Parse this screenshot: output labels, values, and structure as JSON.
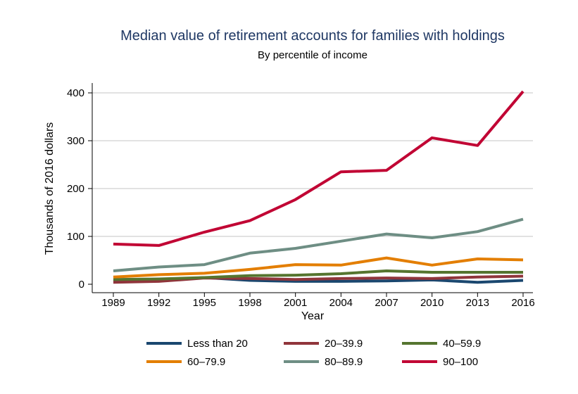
{
  "chart_data": {
    "type": "line",
    "title": "Median value of retirement accounts for families with holdings",
    "subtitle": "By percentile of income",
    "xlabel": "Year",
    "ylabel": "Thousands of 2016 dollars",
    "x": [
      1989,
      1992,
      1995,
      1998,
      2001,
      2004,
      2007,
      2010,
      2013,
      2016
    ],
    "ylim": [
      0,
      400
    ],
    "yticks": [
      0,
      100,
      200,
      300,
      400
    ],
    "grid": true,
    "legend_position": "bottom",
    "series": [
      {
        "name": "Less than 20",
        "color": "#1a476f",
        "values": [
          6,
          8,
          14,
          8,
          6,
          6,
          7,
          9,
          4,
          8
        ]
      },
      {
        "name": "20–39.9",
        "color": "#90353b",
        "values": [
          4,
          6,
          13,
          12,
          10,
          12,
          13,
          12,
          15,
          17
        ]
      },
      {
        "name": "40–59.9",
        "color": "#55752f",
        "values": [
          10,
          11,
          14,
          18,
          19,
          22,
          28,
          25,
          25,
          25
        ]
      },
      {
        "name": "60–79.9",
        "color": "#e37e00",
        "values": [
          15,
          20,
          23,
          31,
          41,
          40,
          55,
          40,
          53,
          51
        ]
      },
      {
        "name": "80–89.9",
        "color": "#6e8e84",
        "values": [
          28,
          36,
          41,
          65,
          75,
          90,
          105,
          97,
          110,
          136
        ]
      },
      {
        "name": "90–100",
        "color": "#c10534",
        "values": [
          84,
          81,
          109,
          133,
          177,
          235,
          238,
          306,
          290,
          403
        ]
      }
    ]
  }
}
